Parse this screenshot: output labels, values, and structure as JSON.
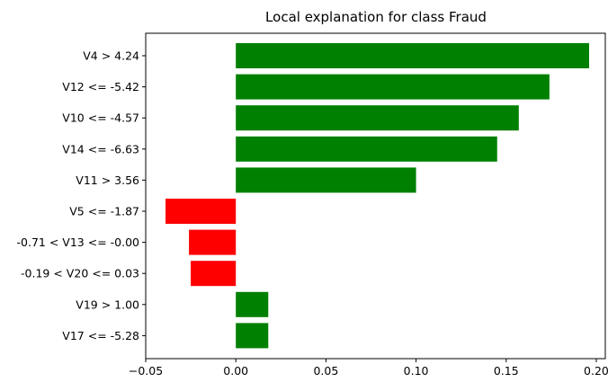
{
  "chart_data": {
    "type": "bar",
    "orientation": "horizontal",
    "title": "Local explanation for class Fraud",
    "xlabel": "",
    "ylabel": "",
    "categories": [
      "V4 > 4.24",
      "V12 <= -5.42",
      "V10 <= -4.57",
      "V14 <= -6.63",
      "V11 > 3.56",
      "V5 <= -1.87",
      "-0.71 < V13 <= -0.00",
      "-0.19 < V20 <= 0.03",
      "V19 > 1.00",
      "V17 <= -5.28"
    ],
    "values": [
      0.196,
      0.174,
      0.157,
      0.145,
      0.1,
      -0.039,
      -0.026,
      -0.025,
      0.018,
      0.018
    ],
    "xlim": [
      -0.05,
      0.205
    ],
    "xticks": [
      "−0.05",
      "0.00",
      "0.05",
      "0.10",
      "0.15",
      "0.20"
    ],
    "xtick_values": [
      -0.05,
      0.0,
      0.05,
      0.1,
      0.15,
      0.2
    ],
    "grid": false,
    "colors": {
      "positive": "#008000",
      "negative": "#ff0000"
    }
  }
}
